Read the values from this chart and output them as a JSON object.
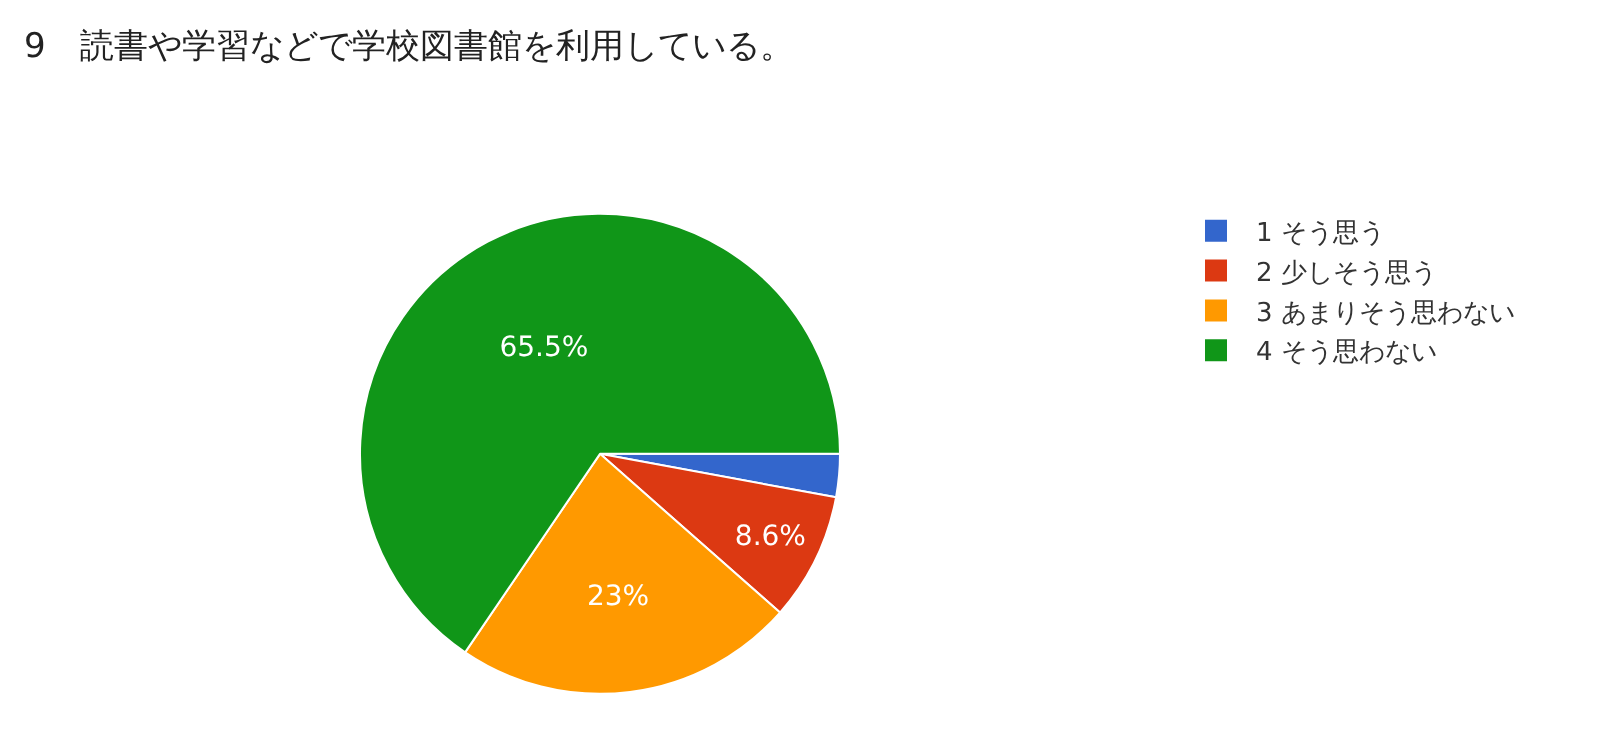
{
  "chart_data": {
    "type": "pie",
    "title": "9　読書や学習などで学校図書館を利用している。",
    "categories": [
      "1 そう思う",
      "2 少しそう思う",
      "3 あまりそう思わない",
      "4 そう思わない"
    ],
    "values": [
      2.9,
      8.6,
      23,
      65.5
    ],
    "colors": [
      "#3366cc",
      "#dc3912",
      "#ff9900",
      "#109618"
    ],
    "value_labels": [
      null,
      "8.6%",
      "23%",
      "65.5%"
    ],
    "legend": "right"
  }
}
